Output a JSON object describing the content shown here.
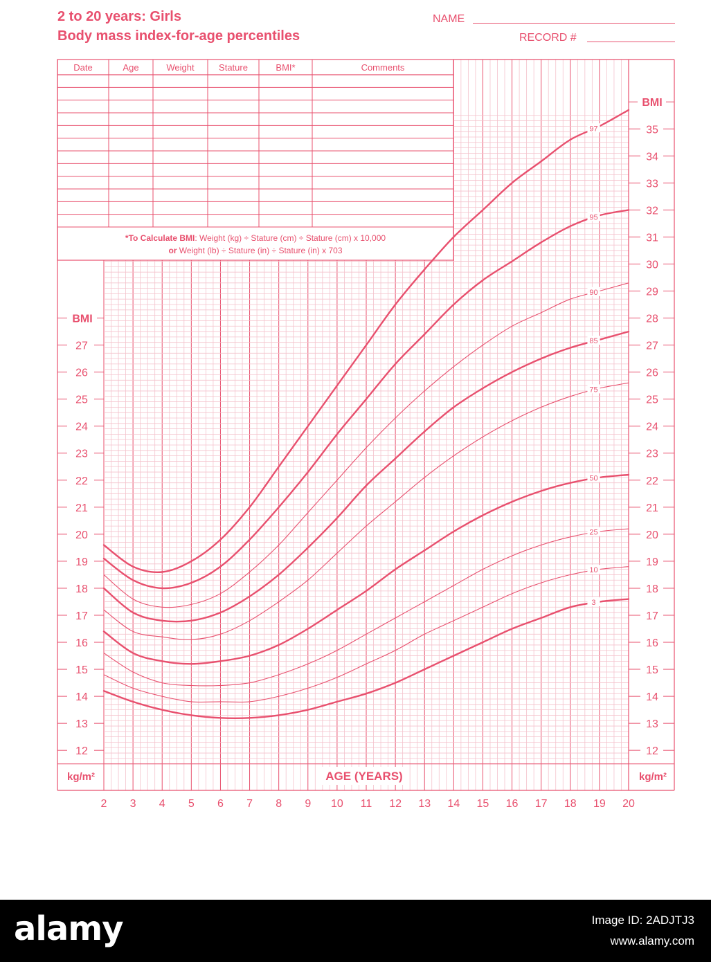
{
  "header": {
    "title_line1": "2 to 20 years: Girls",
    "title_line2": "Body mass index-for-age percentiles",
    "name_label": "NAME",
    "record_label": "RECORD #"
  },
  "record_table": {
    "columns": [
      "Date",
      "Age",
      "Weight",
      "Stature",
      "BMI*",
      "Comments"
    ],
    "blank_rows": 11,
    "note_line1_bold": "*To Calculate BMI",
    "note_line1_rest": ": Weight (kg) ÷ Stature (cm) ÷ Stature (cm) x 10,000",
    "note_line2_bold": "or",
    "note_line2_rest": " Weight (lb) ÷ Stature (in) ÷ Stature (in) x 703"
  },
  "chart_data": {
    "type": "line",
    "xlabel": "AGE (YEARS)",
    "ylabel": "BMI",
    "unit_label": "kg/m²",
    "xlim": [
      2,
      20
    ],
    "ylim_left": [
      11.5,
      27.5
    ],
    "ylim_right": [
      11.5,
      35.5
    ],
    "x_ticks": [
      2,
      3,
      4,
      5,
      6,
      7,
      8,
      9,
      10,
      11,
      12,
      13,
      14,
      15,
      16,
      17,
      18,
      19,
      20
    ],
    "y_ticks_left": [
      12,
      13,
      14,
      15,
      16,
      17,
      18,
      19,
      20,
      21,
      22,
      23,
      24,
      25,
      26,
      27
    ],
    "y_ticks_right": [
      12,
      13,
      14,
      15,
      16,
      17,
      18,
      19,
      20,
      21,
      22,
      23,
      24,
      25,
      26,
      27,
      28,
      29,
      30,
      31,
      32,
      33,
      34,
      35
    ],
    "grid": true,
    "x": [
      2,
      3,
      4,
      5,
      6,
      7,
      8,
      9,
      10,
      11,
      12,
      13,
      14,
      15,
      16,
      17,
      18,
      19,
      20
    ],
    "series": [
      {
        "name": "97",
        "bold": true,
        "label_age": 18.8,
        "values": [
          19.6,
          18.8,
          18.6,
          19.0,
          19.8,
          21.0,
          22.5,
          24.0,
          25.5,
          27.0,
          28.5,
          29.8,
          31.0,
          32.0,
          33.0,
          33.8,
          34.6,
          35.1,
          35.7
        ]
      },
      {
        "name": "95",
        "bold": true,
        "label_age": 18.8,
        "values": [
          19.1,
          18.3,
          18.0,
          18.2,
          18.8,
          19.8,
          21.0,
          22.3,
          23.7,
          25.0,
          26.3,
          27.4,
          28.5,
          29.4,
          30.1,
          30.8,
          31.4,
          31.8,
          32.0
        ]
      },
      {
        "name": "90",
        "bold": false,
        "label_age": 18.8,
        "values": [
          18.5,
          17.6,
          17.3,
          17.4,
          17.8,
          18.6,
          19.6,
          20.8,
          22.0,
          23.2,
          24.3,
          25.3,
          26.2,
          27.0,
          27.7,
          28.2,
          28.7,
          29.0,
          29.3
        ]
      },
      {
        "name": "85",
        "bold": true,
        "label_age": 18.8,
        "values": [
          18.0,
          17.1,
          16.8,
          16.8,
          17.1,
          17.7,
          18.5,
          19.5,
          20.6,
          21.8,
          22.8,
          23.8,
          24.7,
          25.4,
          26.0,
          26.5,
          26.9,
          27.2,
          27.5
        ]
      },
      {
        "name": "75",
        "bold": false,
        "label_age": 18.8,
        "values": [
          17.2,
          16.4,
          16.2,
          16.1,
          16.3,
          16.8,
          17.5,
          18.3,
          19.3,
          20.3,
          21.2,
          22.1,
          22.9,
          23.6,
          24.2,
          24.7,
          25.1,
          25.4,
          25.6
        ]
      },
      {
        "name": "50",
        "bold": true,
        "label_age": 18.8,
        "values": [
          16.4,
          15.6,
          15.3,
          15.2,
          15.3,
          15.5,
          15.9,
          16.5,
          17.2,
          17.9,
          18.7,
          19.4,
          20.1,
          20.7,
          21.2,
          21.6,
          21.9,
          22.1,
          22.2
        ]
      },
      {
        "name": "25",
        "bold": false,
        "label_age": 18.8,
        "values": [
          15.6,
          14.9,
          14.5,
          14.4,
          14.4,
          14.5,
          14.8,
          15.2,
          15.7,
          16.3,
          16.9,
          17.5,
          18.1,
          18.7,
          19.2,
          19.6,
          19.9,
          20.1,
          20.2
        ]
      },
      {
        "name": "10",
        "bold": false,
        "label_age": 18.8,
        "values": [
          14.8,
          14.3,
          14.0,
          13.8,
          13.8,
          13.8,
          14.0,
          14.3,
          14.7,
          15.2,
          15.7,
          16.3,
          16.8,
          17.3,
          17.8,
          18.2,
          18.5,
          18.7,
          18.8
        ]
      },
      {
        "name": "3",
        "bold": true,
        "label_age": 18.8,
        "values": [
          14.2,
          13.8,
          13.5,
          13.3,
          13.2,
          13.2,
          13.3,
          13.5,
          13.8,
          14.1,
          14.5,
          15.0,
          15.5,
          16.0,
          16.5,
          16.9,
          17.3,
          17.5,
          17.6
        ]
      }
    ]
  },
  "colors": {
    "primary": "#e8506e",
    "grid_fine": "#f4c2cc",
    "grid_major": "#e8506e",
    "background": "#ffffff"
  },
  "footer": {
    "logo": "alamy",
    "image_id": "Image ID: 2ADJTJ3",
    "site": "www.alamy.com"
  }
}
